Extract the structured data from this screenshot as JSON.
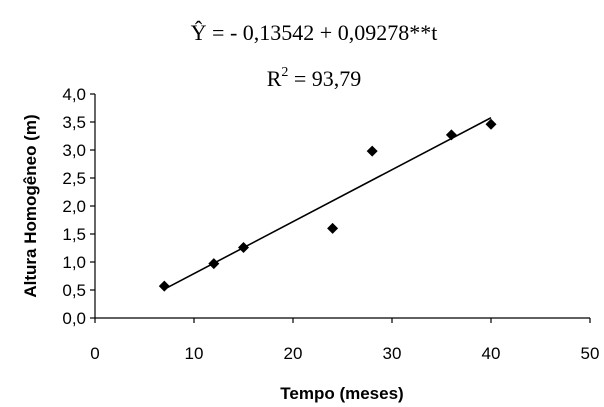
{
  "chart_data": {
    "type": "scatter",
    "equation": "Ŷ = - 0,13542 + 0,09278**t",
    "r2_label": "R",
    "r2_superscript": "2",
    "r2_value": " = 93,79",
    "xlabel": "Tempo (meses)",
    "ylabel": "Altura Homogêneo (m)",
    "xlim": [
      0,
      50
    ],
    "ylim": [
      0,
      4
    ],
    "x_ticks": [
      "0",
      "10",
      "20",
      "30",
      "40",
      "50"
    ],
    "y_ticks": [
      "0,0",
      "0,5",
      "1,0",
      "1,5",
      "2,0",
      "2,5",
      "3,0",
      "3,5",
      "4,0"
    ],
    "grid": false,
    "legend": "none",
    "series": [
      {
        "marker": "diamond",
        "color": "#000000",
        "points": [
          {
            "x": 7,
            "y": 0.57
          },
          {
            "x": 12,
            "y": 0.97
          },
          {
            "x": 15,
            "y": 1.26
          },
          {
            "x": 24,
            "y": 1.6
          },
          {
            "x": 28,
            "y": 2.98
          },
          {
            "x": 36,
            "y": 3.27
          },
          {
            "x": 40,
            "y": 3.46
          }
        ]
      }
    ],
    "trendline": {
      "intercept": -0.13542,
      "slope": 0.09278,
      "x_range": [
        7,
        40
      ],
      "color": "#000000"
    }
  }
}
